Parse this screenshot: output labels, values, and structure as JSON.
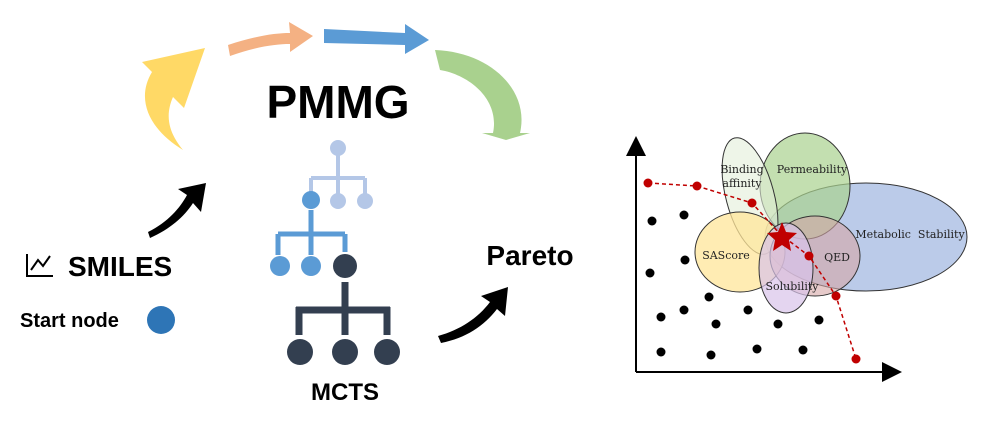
{
  "title": "PMMG",
  "smiles_label": "SMILES",
  "start_node_label": "Start node",
  "mcts_label": "MCTS",
  "pareto_label": "Pareto",
  "properties": {
    "binding": [
      "Binding",
      "affinity"
    ],
    "permeability": "Permeability",
    "metabolic": "Metabolic  Stability",
    "sascore": "SAScore",
    "qed": "QED",
    "solubility": "Solubility"
  },
  "colors": {
    "yellow_arrow": "#FFD966",
    "orange_arrow": "#F4B183",
    "blue_arrow": "#5B9BD5",
    "green_arrow": "#A9D18E",
    "start_node": "#2E75B6",
    "tree_light": "#B4C7E7",
    "tree_mid": "#5B9BD5",
    "tree_dark": "#333F50",
    "pareto_line": "#C00000",
    "star": "#C00000",
    "ellipse_binding": "#E2EFD9",
    "ellipse_permeability": "#A9D18E",
    "ellipse_metabolic": "#8EA9DB",
    "ellipse_sascore": "#FFE699",
    "ellipse_qed": "#D5A6A6",
    "ellipse_solubility": "#D9C3E9"
  },
  "icons": [
    "line-chart-icon",
    "start-node-icon",
    "cycle-arrow-icon",
    "star-icon",
    "pointer-arrow-icon"
  ]
}
